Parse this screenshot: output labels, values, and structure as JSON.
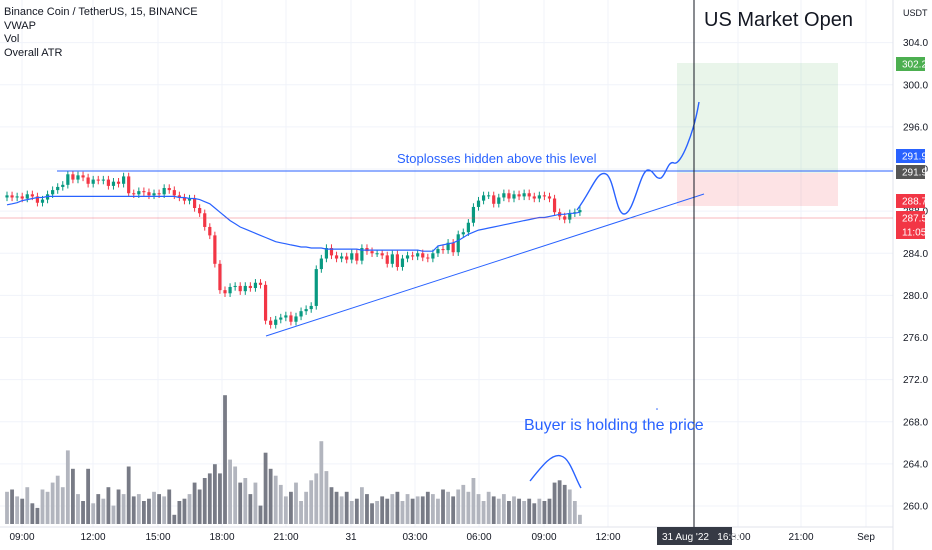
{
  "legend": {
    "symbol": "Binance Coin / TetherUS, 15, BINANCE",
    "indicators": [
      "VWAP",
      "Vol",
      "Overall ATR"
    ]
  },
  "currency": "USDT",
  "annotations": {
    "market_open": "US Market Open",
    "stoploss": "Stoplosses hidden above this level",
    "buyer": "Buyer is holding the price"
  },
  "price_badges": [
    {
      "label": "302.2",
      "color": "#4caf50"
    },
    {
      "label": "291.9",
      "color": "#2962ff"
    },
    {
      "label": "291.9",
      "color": "#555555"
    },
    {
      "label": "288.7",
      "color": "#f23645"
    },
    {
      "label": "287.5",
      "color": "#f23645"
    },
    {
      "label": "11:05",
      "color": "#f23645"
    }
  ],
  "crosshair_label": "31 Aug '22   16:00",
  "colors": {
    "up": "#089981",
    "down": "#f23645",
    "vwap": "#2962ff",
    "vol_up": "#b2b5be",
    "vol_down": "#787b86"
  },
  "chart_data": {
    "type": "candlestick",
    "symbol": "Binance Coin / TetherUS",
    "interval": "15",
    "y_ticks": [
      260.0,
      264.0,
      268.0,
      272.0,
      276.0,
      280.0,
      284.0,
      288.0,
      292.0,
      296.0,
      300.0,
      304.0
    ],
    "x_ticks": [
      "09:00",
      "12:00",
      "15:00",
      "18:00",
      "21:00",
      "31",
      "03:00",
      "06:00",
      "09:00",
      "12:00",
      "18:00",
      "21:00",
      "Sep"
    ],
    "ylim": [
      259.0,
      306.5
    ],
    "levels": {
      "resistance": 291.9,
      "entry": 287.5,
      "target": 302.2,
      "stop": 288.7
    },
    "closes": [
      289.5,
      289.3,
      289.4,
      289.2,
      289.6,
      289.4,
      288.8,
      289.1,
      289.6,
      290.0,
      290.3,
      290.5,
      291.5,
      291.0,
      291.4,
      291.2,
      290.6,
      291.0,
      290.9,
      291.0,
      290.4,
      290.8,
      290.6,
      291.3,
      289.7,
      289.6,
      289.9,
      289.8,
      289.5,
      289.7,
      289.6,
      290.2,
      290.0,
      289.5,
      289.3,
      289.0,
      289.2,
      288.3,
      287.8,
      286.5,
      285.7,
      283.0,
      280.5,
      280.2,
      280.8,
      280.9,
      280.4,
      280.9,
      280.7,
      281.2,
      281.0,
      277.6,
      277.2,
      277.7,
      277.9,
      278.1,
      277.5,
      278.0,
      278.5,
      278.7,
      279.0,
      282.5,
      283.5,
      284.5,
      283.8,
      283.5,
      283.7,
      283.4,
      284.0,
      283.3,
      284.5,
      284.2,
      284.0,
      284.0,
      283.8,
      283.0,
      283.9,
      282.7,
      283.5,
      283.8,
      283.7,
      284.0,
      283.6,
      283.5,
      284.0,
      284.4,
      284.3,
      285.0,
      284.1,
      285.8,
      286.0,
      286.9,
      288.4,
      289.0,
      289.5,
      289.5,
      288.7,
      289.3,
      289.7,
      289.2,
      289.6,
      289.4,
      289.7,
      289.4,
      289.2,
      289.5,
      289.4,
      289.2,
      287.9,
      287.5,
      287.2,
      287.8,
      287.9,
      288.1
    ],
    "volume": [
      1.4,
      1.5,
      1.2,
      1.1,
      1.6,
      0.9,
      0.7,
      1.5,
      1.4,
      1.8,
      2.1,
      1.6,
      3.2,
      2.4,
      1.3,
      1.0,
      2.4,
      0.9,
      1.3,
      1.1,
      1.6,
      0.8,
      1.5,
      1.3,
      2.5,
      1.2,
      1.3,
      1.0,
      1.1,
      1.4,
      1.3,
      1.2,
      1.5,
      0.4,
      1.0,
      1.1,
      1.3,
      1.8,
      1.5,
      2.0,
      2.2,
      2.6,
      2.2,
      5.6,
      2.8,
      2.5,
      1.8,
      2.0,
      1.3,
      1.8,
      0.8,
      3.1,
      2.4,
      2.1,
      1.7,
      1.2,
      1.4,
      1.8,
      1.0,
      1.4,
      1.9,
      2.2,
      3.6,
      2.3,
      1.6,
      1.4,
      1.2,
      1.4,
      1.0,
      1.1,
      1.6,
      1.3,
      0.9,
      1.0,
      1.2,
      1.1,
      1.3,
      1.4,
      1.0,
      1.3,
      1.1,
      1.2,
      1.2,
      1.4,
      1.3,
      1.1,
      1.5,
      1.4,
      1.2,
      1.5,
      1.7,
      1.4,
      2.0,
      1.3,
      1.0,
      1.4,
      1.2,
      1.1,
      1.3,
      1.0,
      1.2,
      1.1,
      1.0,
      1.1,
      0.9,
      1.1,
      1.0,
      1.1,
      1.8,
      1.9,
      1.7,
      1.5,
      1.0,
      0.4
    ],
    "vwap": [
      288.6,
      288.7,
      288.8,
      289.0,
      289.1,
      289.2,
      289.3,
      289.3,
      289.4,
      289.4,
      289.4,
      289.4,
      289.4,
      289.4,
      289.4,
      289.4,
      289.4,
      289.4,
      289.4,
      289.4,
      289.4,
      289.4,
      289.4,
      289.4,
      289.4,
      289.4,
      289.4,
      289.4,
      289.4,
      289.4,
      289.4,
      289.4,
      289.4,
      289.4,
      289.3,
      289.3,
      289.2,
      289.2,
      289.1,
      288.9,
      288.7,
      288.3,
      287.9,
      287.5,
      287.1,
      286.8,
      286.5,
      286.3,
      286.1,
      285.9,
      285.7,
      285.5,
      285.3,
      285.1,
      285.0,
      284.9,
      284.8,
      284.7,
      284.6,
      284.6,
      284.5,
      284.5,
      284.5,
      284.4,
      284.4,
      284.4,
      284.4,
      284.4,
      284.4,
      284.4,
      284.3,
      284.3,
      284.3,
      284.3,
      284.3,
      284.3,
      284.3,
      284.3,
      284.3,
      284.3,
      284.3,
      284.3,
      284.2,
      284.2,
      284.2,
      284.7,
      284.8,
      284.9,
      285.0,
      285.2,
      285.5,
      285.8,
      286.0,
      286.2,
      286.3,
      286.4,
      286.5,
      286.6,
      286.7,
      286.8,
      286.9,
      287.0,
      287.1,
      287.2,
      287.3,
      287.4,
      287.4,
      287.5,
      287.6,
      287.7,
      287.7,
      287.8,
      287.8,
      287.9
    ]
  }
}
